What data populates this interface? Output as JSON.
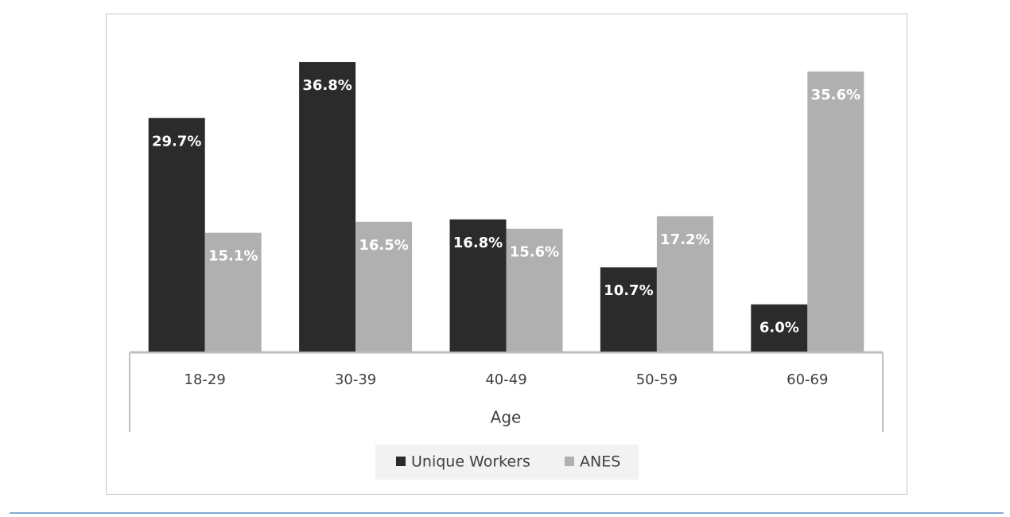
{
  "chart_data": {
    "type": "bar",
    "x_label": "Age",
    "categories": [
      "18-29",
      "30-39",
      "40-49",
      "50-59",
      "60-69"
    ],
    "series": [
      {
        "name": "Unique Workers",
        "color": "#2b2b2b",
        "values": [
          29.7,
          36.8,
          16.8,
          10.7,
          6.0
        ],
        "value_labels": [
          "29.7%",
          "36.8%",
          "16.8%",
          "10.7%",
          "6.0%"
        ]
      },
      {
        "name": "ANES",
        "color": "#b0b0b0",
        "values": [
          15.1,
          16.5,
          15.6,
          17.2,
          35.6
        ],
        "value_labels": [
          "15.1%",
          "16.5%",
          "15.6%",
          "17.2%",
          "35.6%"
        ]
      }
    ],
    "legend": "bottom"
  }
}
